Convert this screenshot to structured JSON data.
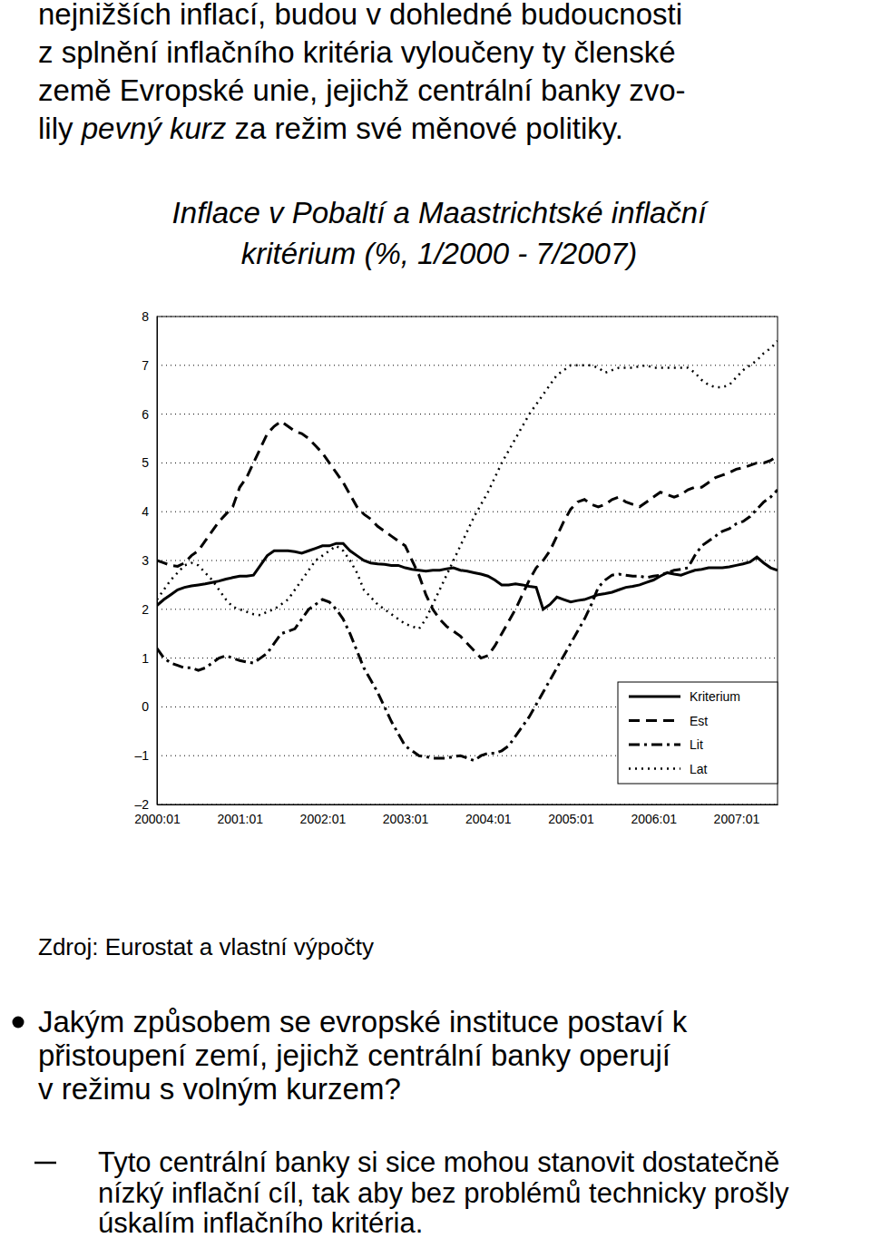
{
  "paragraph": {
    "lines": [
      [
        {
          "text": "nejnižších inflací, budou v dohledné budoucnosti"
        }
      ],
      [
        {
          "text": "z splnění inflačního kritéria vyloučeny ty členské"
        }
      ],
      [
        {
          "text": "země Evropské unie, jejichž centrální banky zvo-"
        }
      ],
      [
        {
          "text": "lily "
        },
        {
          "text": "pevný kurz",
          "style": "italic"
        },
        {
          "text": " za režim své měnové politiky."
        }
      ]
    ]
  },
  "chart_data": {
    "type": "line",
    "title": [
      "Inflace v Pobaltí a Maastrichtské inflační",
      "kritérium (%, 1/2000 - 7/2007)"
    ],
    "categories": [
      "2000:01",
      null,
      null,
      null,
      null,
      null,
      null,
      null,
      null,
      null,
      null,
      null,
      "2001:01",
      null,
      null,
      null,
      null,
      null,
      null,
      null,
      null,
      null,
      null,
      null,
      "2002:01",
      null,
      null,
      null,
      null,
      null,
      null,
      null,
      null,
      null,
      null,
      null,
      "2003:01",
      null,
      null,
      null,
      null,
      null,
      null,
      null,
      null,
      null,
      null,
      null,
      "2004:01",
      null,
      null,
      null,
      null,
      null,
      null,
      null,
      null,
      null,
      null,
      null,
      "2005:01",
      null,
      null,
      null,
      null,
      null,
      null,
      null,
      null,
      null,
      null,
      null,
      "2006:01",
      null,
      null,
      null,
      null,
      null,
      null,
      null,
      null,
      null,
      null,
      null,
      "2007:01",
      null,
      null,
      null,
      null,
      null,
      null
    ],
    "series": [
      {
        "name": "Kriterium",
        "color": "#000000",
        "line_style": "solid",
        "values": [
          2.08,
          2.2,
          2.3,
          2.4,
          2.45,
          2.48,
          2.5,
          2.52,
          2.55,
          2.58,
          2.62,
          2.65,
          2.68,
          2.68,
          2.7,
          2.9,
          3.1,
          3.2,
          3.2,
          3.2,
          3.18,
          3.15,
          3.2,
          3.25,
          3.3,
          3.3,
          3.35,
          3.35,
          3.2,
          3.1,
          3.0,
          2.95,
          2.93,
          2.92,
          2.9,
          2.9,
          2.85,
          2.82,
          2.8,
          2.78,
          2.8,
          2.8,
          2.83,
          2.85,
          2.8,
          2.78,
          2.75,
          2.72,
          2.68,
          2.6,
          2.5,
          2.5,
          2.52,
          2.5,
          2.47,
          2.45,
          2.0,
          2.1,
          2.25,
          2.2,
          2.15,
          2.18,
          2.2,
          2.25,
          2.3,
          2.32,
          2.35,
          2.4,
          2.45,
          2.47,
          2.5,
          2.55,
          2.6,
          2.68,
          2.75,
          2.72,
          2.7,
          2.75,
          2.8,
          2.82,
          2.85,
          2.85,
          2.85,
          2.87,
          2.9,
          2.93,
          2.97,
          3.07,
          2.95,
          2.85,
          2.8
        ]
      },
      {
        "name": "Est",
        "color": "#000000",
        "line_style": "dashed",
        "values": [
          3.0,
          2.95,
          2.9,
          2.88,
          2.95,
          3.1,
          3.2,
          3.4,
          3.6,
          3.8,
          3.95,
          4.1,
          4.5,
          4.7,
          5.0,
          5.3,
          5.6,
          5.75,
          5.85,
          5.75,
          5.65,
          5.6,
          5.5,
          5.35,
          5.2,
          5.0,
          4.8,
          4.6,
          4.35,
          4.1,
          3.95,
          3.85,
          3.7,
          3.6,
          3.5,
          3.4,
          3.3,
          3.0,
          2.7,
          2.3,
          2.0,
          1.8,
          1.65,
          1.55,
          1.45,
          1.3,
          1.15,
          1.0,
          1.05,
          1.25,
          1.5,
          1.75,
          2.0,
          2.3,
          2.6,
          2.85,
          3.0,
          3.2,
          3.5,
          3.8,
          4.05,
          4.2,
          4.25,
          4.15,
          4.1,
          4.15,
          4.25,
          4.3,
          4.2,
          4.15,
          4.1,
          4.2,
          4.3,
          4.4,
          4.35,
          4.3,
          4.35,
          4.45,
          4.5,
          4.5,
          4.6,
          4.7,
          4.75,
          4.8,
          4.87,
          4.9,
          4.95,
          5.0,
          5.0,
          5.05,
          5.15
        ]
      },
      {
        "name": "Lit",
        "color": "#000000",
        "line_style": "dashdot",
        "values": [
          1.2,
          1.0,
          0.9,
          0.85,
          0.8,
          0.8,
          0.75,
          0.8,
          0.9,
          1.0,
          1.05,
          1.0,
          0.95,
          0.92,
          0.9,
          1.0,
          1.1,
          1.3,
          1.5,
          1.55,
          1.6,
          1.8,
          2.0,
          2.1,
          2.2,
          2.15,
          2.0,
          1.8,
          1.5,
          1.15,
          0.8,
          0.55,
          0.3,
          0.0,
          -0.3,
          -0.55,
          -0.8,
          -0.9,
          -1.0,
          -1.02,
          -1.05,
          -1.05,
          -1.05,
          -1.02,
          -1.0,
          -1.05,
          -1.1,
          -1.0,
          -0.95,
          -0.95,
          -0.9,
          -0.8,
          -0.6,
          -0.4,
          -0.2,
          0.05,
          0.3,
          0.55,
          0.8,
          1.05,
          1.3,
          1.55,
          1.8,
          2.1,
          2.45,
          2.6,
          2.7,
          2.72,
          2.7,
          2.68,
          2.68,
          2.65,
          2.68,
          2.7,
          2.75,
          2.8,
          2.82,
          2.85,
          3.1,
          3.3,
          3.4,
          3.5,
          3.6,
          3.65,
          3.75,
          3.8,
          3.9,
          4.05,
          4.2,
          4.3,
          4.45
        ]
      },
      {
        "name": "Lat",
        "color": "#000000",
        "line_style": "dotted",
        "values": [
          2.2,
          2.4,
          2.6,
          2.75,
          2.9,
          2.95,
          2.9,
          2.75,
          2.6,
          2.4,
          2.2,
          2.05,
          2.0,
          1.95,
          1.9,
          1.88,
          1.95,
          2.0,
          2.1,
          2.2,
          2.4,
          2.6,
          2.8,
          3.0,
          3.1,
          3.2,
          3.3,
          3.2,
          3.0,
          2.75,
          2.4,
          2.25,
          2.1,
          2.0,
          1.9,
          1.8,
          1.7,
          1.65,
          1.6,
          1.8,
          2.1,
          2.4,
          2.7,
          3.0,
          3.3,
          3.6,
          3.9,
          4.15,
          4.4,
          4.7,
          5.0,
          5.25,
          5.5,
          5.75,
          6.0,
          6.2,
          6.4,
          6.6,
          6.8,
          6.9,
          7.0,
          7.0,
          7.0,
          7.0,
          6.95,
          6.85,
          6.9,
          6.95,
          6.95,
          6.95,
          6.98,
          7.0,
          6.95,
          6.95,
          6.95,
          6.95,
          6.95,
          6.95,
          6.85,
          6.7,
          6.6,
          6.55,
          6.55,
          6.6,
          6.75,
          6.9,
          7.0,
          7.1,
          7.25,
          7.35,
          7.5
        ]
      }
    ],
    "ylim": [
      -2,
      8
    ],
    "yticks": [
      {
        "value": -2,
        "label": "–2"
      },
      {
        "value": -1,
        "label": "–1"
      },
      0,
      1,
      2,
      3,
      4,
      5,
      6,
      7,
      8
    ],
    "grid": true,
    "legend": "lower right"
  },
  "source": "Zdroj: Eurostat a vlastní výpočty",
  "bullets": [
    {
      "lines": [
        "Jakým způsobem se evropské instituce postaví k",
        "přistoupení zemí, jejichž centrální banky operují",
        "v režimu s volným kurzem?"
      ],
      "subitems": [
        {
          "lines": [
            "Tyto centrální banky si sice mohou stanovit dostatečně",
            "nízký inflační cíl, tak aby bez problémů technicky prošly",
            "úskalím inflačního kritéria."
          ]
        }
      ]
    }
  ]
}
